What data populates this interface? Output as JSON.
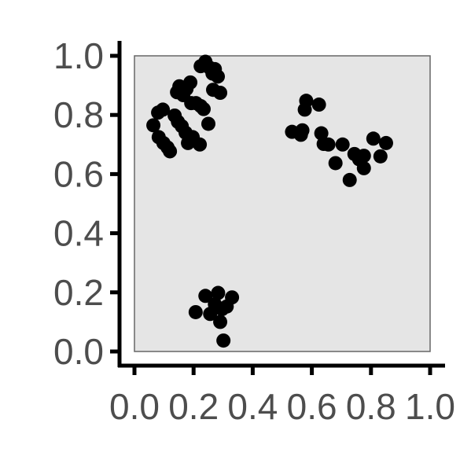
{
  "chart_data": {
    "type": "scatter",
    "title": "",
    "xlabel": "",
    "ylabel": "",
    "xlim": [
      0,
      1
    ],
    "ylim": [
      0,
      1
    ],
    "grid": false,
    "panel_background": "#e5e5e5",
    "panel_border": "#666666",
    "axis_color": "#000000",
    "point_color": "#000000",
    "x_ticks": [
      0,
      0.2,
      0.4,
      0.6,
      0.8,
      1.0
    ],
    "x_tick_labels": [
      "0.0",
      "0.2",
      "0.4",
      "0.6",
      "0.8",
      "1.0"
    ],
    "y_ticks": [
      0,
      0.2,
      0.4,
      0.6,
      0.8,
      1.0
    ],
    "y_tick_labels": [
      "0.0",
      "0.2",
      "0.4",
      "0.6",
      "0.8",
      "1.0"
    ],
    "points": [
      {
        "x": 0.064,
        "y": 0.765
      },
      {
        "x": 0.08,
        "y": 0.808
      },
      {
        "x": 0.096,
        "y": 0.818
      },
      {
        "x": 0.082,
        "y": 0.725
      },
      {
        "x": 0.098,
        "y": 0.705
      },
      {
        "x": 0.112,
        "y": 0.69
      },
      {
        "x": 0.12,
        "y": 0.677
      },
      {
        "x": 0.136,
        "y": 0.798
      },
      {
        "x": 0.147,
        "y": 0.777
      },
      {
        "x": 0.16,
        "y": 0.762
      },
      {
        "x": 0.173,
        "y": 0.74
      },
      {
        "x": 0.181,
        "y": 0.705
      },
      {
        "x": 0.197,
        "y": 0.725
      },
      {
        "x": 0.221,
        "y": 0.7
      },
      {
        "x": 0.144,
        "y": 0.877
      },
      {
        "x": 0.152,
        "y": 0.897
      },
      {
        "x": 0.165,
        "y": 0.867
      },
      {
        "x": 0.176,
        "y": 0.888
      },
      {
        "x": 0.189,
        "y": 0.91
      },
      {
        "x": 0.192,
        "y": 0.84
      },
      {
        "x": 0.208,
        "y": 0.84
      },
      {
        "x": 0.224,
        "y": 0.83
      },
      {
        "x": 0.234,
        "y": 0.82
      },
      {
        "x": 0.224,
        "y": 0.965
      },
      {
        "x": 0.24,
        "y": 0.98
      },
      {
        "x": 0.254,
        "y": 0.96
      },
      {
        "x": 0.264,
        "y": 0.94
      },
      {
        "x": 0.272,
        "y": 0.955
      },
      {
        "x": 0.282,
        "y": 0.93
      },
      {
        "x": 0.266,
        "y": 0.885
      },
      {
        "x": 0.29,
        "y": 0.875
      },
      {
        "x": 0.25,
        "y": 0.77
      },
      {
        "x": 0.533,
        "y": 0.743
      },
      {
        "x": 0.563,
        "y": 0.733
      },
      {
        "x": 0.568,
        "y": 0.748
      },
      {
        "x": 0.576,
        "y": 0.818
      },
      {
        "x": 0.581,
        "y": 0.848
      },
      {
        "x": 0.624,
        "y": 0.835
      },
      {
        "x": 0.632,
        "y": 0.738
      },
      {
        "x": 0.64,
        "y": 0.702
      },
      {
        "x": 0.656,
        "y": 0.7
      },
      {
        "x": 0.68,
        "y": 0.637
      },
      {
        "x": 0.704,
        "y": 0.7
      },
      {
        "x": 0.728,
        "y": 0.58
      },
      {
        "x": 0.744,
        "y": 0.668
      },
      {
        "x": 0.76,
        "y": 0.65
      },
      {
        "x": 0.776,
        "y": 0.662
      },
      {
        "x": 0.776,
        "y": 0.62
      },
      {
        "x": 0.808,
        "y": 0.72
      },
      {
        "x": 0.832,
        "y": 0.66
      },
      {
        "x": 0.851,
        "y": 0.705
      },
      {
        "x": 0.207,
        "y": 0.133
      },
      {
        "x": 0.24,
        "y": 0.188
      },
      {
        "x": 0.256,
        "y": 0.127
      },
      {
        "x": 0.272,
        "y": 0.16
      },
      {
        "x": 0.283,
        "y": 0.198
      },
      {
        "x": 0.29,
        "y": 0.1
      },
      {
        "x": 0.296,
        "y": 0.143
      },
      {
        "x": 0.312,
        "y": 0.152
      },
      {
        "x": 0.33,
        "y": 0.183
      },
      {
        "x": 0.301,
        "y": 0.037
      }
    ]
  }
}
